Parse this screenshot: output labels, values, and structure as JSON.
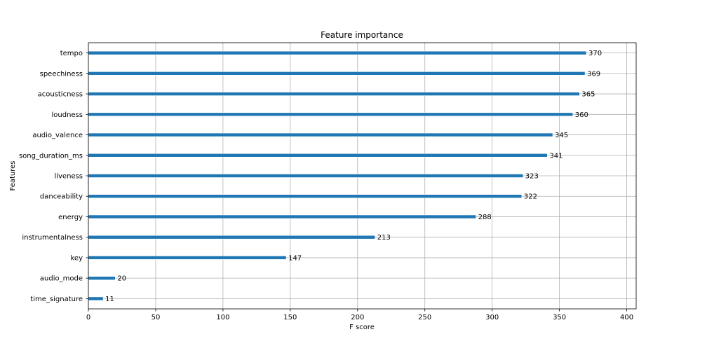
{
  "chart_data": {
    "type": "bar",
    "orientation": "horizontal",
    "title": "Feature importance",
    "xlabel": "F score",
    "ylabel": "Features",
    "xlim": [
      0,
      407
    ],
    "xticks": [
      0,
      50,
      100,
      150,
      200,
      250,
      300,
      350,
      400
    ],
    "grid": true,
    "categories": [
      "tempo",
      "speechiness",
      "acousticness",
      "loudness",
      "audio_valence",
      "song_duration_ms",
      "liveness",
      "danceability",
      "energy",
      "instrumentalness",
      "key",
      "audio_mode",
      "time_signature"
    ],
    "values": [
      370,
      369,
      365,
      360,
      345,
      341,
      323,
      322,
      288,
      213,
      147,
      20,
      11
    ],
    "colors": {
      "bar": "#1f77b4",
      "grid": "#b0b0b0"
    }
  }
}
